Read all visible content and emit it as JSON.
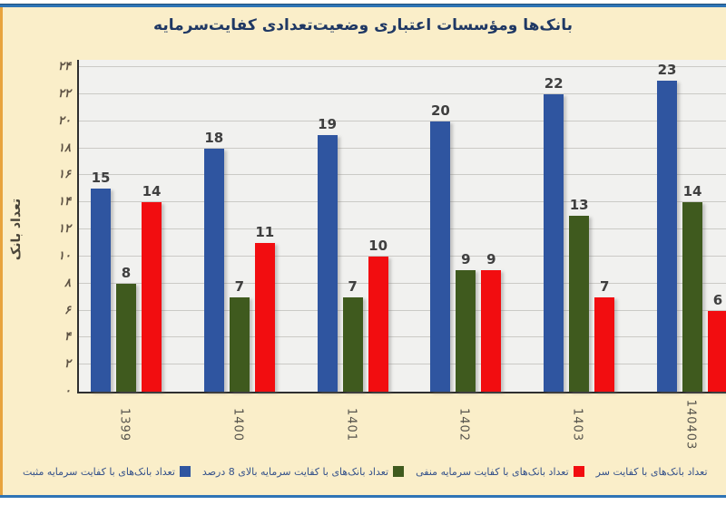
{
  "title": "بانک‌ها ومؤسسات اعتباری وضعیت‌تعدادی کفایت‌سرمایه",
  "y_axis": {
    "title": "تعداد بانک",
    "ticks": [
      "۰",
      "۲",
      "۴",
      "۶",
      "۸",
      "۱۰",
      "۱۲",
      "۱۴",
      "۱۶",
      "۱۸",
      "۲۰",
      "۲۲",
      "۲۴"
    ],
    "tick_values": [
      0,
      2,
      4,
      6,
      8,
      10,
      12,
      14,
      16,
      18,
      20,
      22,
      24
    ]
  },
  "chart_data": {
    "type": "bar",
    "title": "بانک‌ها ومؤسسات اعتباری وضعیت‌تعدادی کفایت‌سرمایه",
    "categories": [
      "1399",
      "1400",
      "1401",
      "1402",
      "1403",
      "140403"
    ],
    "series": [
      {
        "name": "تعداد بانک‌های با کفایت سرمایه مثبت",
        "color": "#2F55A0",
        "values": [
          15,
          18,
          19,
          20,
          22,
          23
        ]
      },
      {
        "name": "تعداد بانک‌های با کفایت سرمایه بالای 8 درصد",
        "color": "#3F5A1E",
        "values": [
          8,
          7,
          7,
          9,
          13,
          14
        ]
      },
      {
        "name": "تعداد بانک‌های با کفایت سرمایه منفی",
        "color": "#F20D10",
        "values": [
          14,
          11,
          10,
          9,
          7,
          6
        ]
      }
    ],
    "ylim": [
      0,
      24
    ],
    "ylabel": "تعداد بانک",
    "grid": "horizontal",
    "legend_position": "bottom",
    "legend_clipped_extra": "تعداد بانک‌های با کفایت سر"
  },
  "colors": {
    "page_background": "#FAEEC9",
    "plot_background": "#F1F1EF",
    "top_rule": "#2E74B5",
    "bottom_rule": "#2E74B5",
    "left_rule": "#E8A33D",
    "gridline": "#CBCAC6",
    "axis_line": "#2F2F2F",
    "bar_blue": "#2F55A0",
    "bar_green": "#3F5A1E",
    "bar_red": "#F20D10",
    "data_label": "#3F3F3F",
    "title_text": "#1F3864",
    "legend_text": "#33508A"
  }
}
